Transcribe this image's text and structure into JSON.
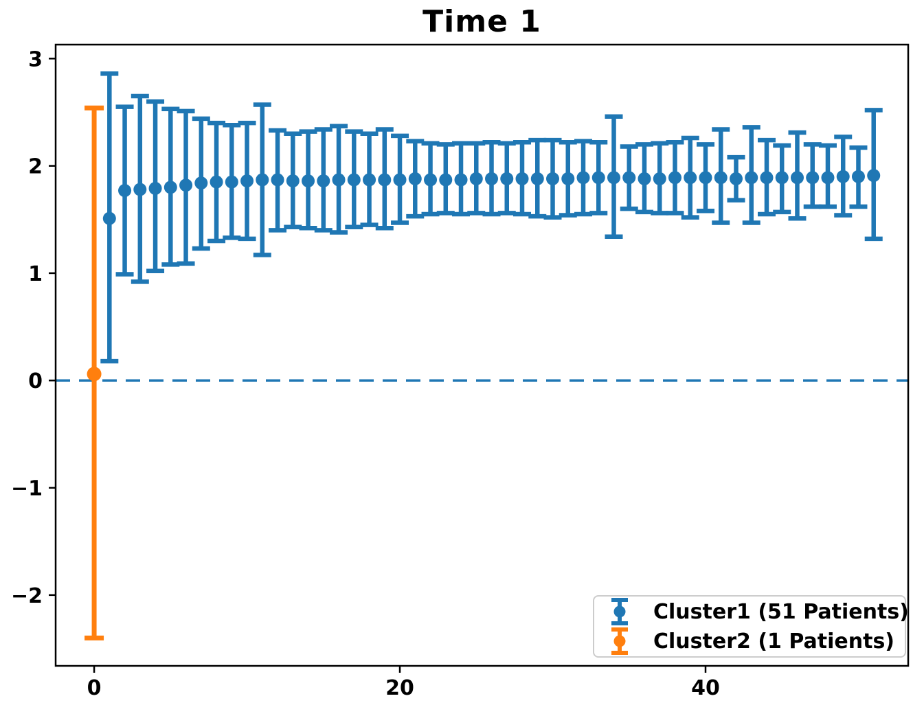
{
  "figure": {
    "background": "#ffffff"
  },
  "chart_data": {
    "type": "scatter",
    "subtype": "errorbar",
    "title": "Time 1",
    "xlabel": "",
    "ylabel": "",
    "xlim": [
      -2.52,
      53.26
    ],
    "ylim": [
      -2.66,
      3.13
    ],
    "grid": false,
    "x_ticks": [
      {
        "value": 0,
        "label": "0"
      },
      {
        "value": 20,
        "label": "20"
      },
      {
        "value": 40,
        "label": "40"
      }
    ],
    "y_ticks": [
      {
        "value": -2,
        "label": "−2"
      },
      {
        "value": -1,
        "label": "−1"
      },
      {
        "value": 0,
        "label": "0"
      },
      {
        "value": 1,
        "label": "1"
      },
      {
        "value": 2,
        "label": "2"
      },
      {
        "value": 3,
        "label": "3"
      }
    ],
    "zero_line": {
      "y": 0,
      "color": "#1f77b4",
      "style": "dashed"
    },
    "legend": {
      "position": "lower right"
    },
    "series": [
      {
        "name": "Cluster1 (51 Patients)",
        "color": "#1f77b4",
        "x": [
          1,
          2,
          3,
          4,
          5,
          6,
          7,
          8,
          9,
          10,
          11,
          12,
          13,
          14,
          15,
          16,
          17,
          18,
          19,
          20,
          21,
          22,
          23,
          24,
          25,
          26,
          27,
          28,
          29,
          30,
          31,
          32,
          33,
          34,
          35,
          36,
          37,
          38,
          39,
          40,
          41,
          42,
          43,
          44,
          45,
          46,
          47,
          48,
          49,
          50,
          51
        ],
        "y": [
          1.51,
          1.77,
          1.78,
          1.79,
          1.8,
          1.82,
          1.84,
          1.85,
          1.85,
          1.86,
          1.87,
          1.87,
          1.86,
          1.86,
          1.86,
          1.87,
          1.87,
          1.87,
          1.87,
          1.87,
          1.88,
          1.87,
          1.87,
          1.87,
          1.88,
          1.88,
          1.88,
          1.88,
          1.88,
          1.88,
          1.88,
          1.89,
          1.89,
          1.89,
          1.89,
          1.88,
          1.88,
          1.89,
          1.89,
          1.89,
          1.89,
          1.88,
          1.89,
          1.89,
          1.89,
          1.89,
          1.89,
          1.89,
          1.9,
          1.9,
          1.91
        ],
        "y_lo": [
          0.18,
          0.99,
          0.92,
          1.02,
          1.08,
          1.09,
          1.23,
          1.3,
          1.33,
          1.32,
          1.17,
          1.4,
          1.43,
          1.42,
          1.4,
          1.38,
          1.43,
          1.45,
          1.42,
          1.47,
          1.53,
          1.55,
          1.56,
          1.55,
          1.56,
          1.55,
          1.56,
          1.55,
          1.53,
          1.52,
          1.54,
          1.55,
          1.56,
          1.34,
          1.6,
          1.57,
          1.56,
          1.56,
          1.52,
          1.58,
          1.47,
          1.68,
          1.47,
          1.55,
          1.57,
          1.51,
          1.62,
          1.62,
          1.54,
          1.62,
          1.32
        ],
        "y_hi": [
          2.86,
          2.55,
          2.65,
          2.6,
          2.53,
          2.51,
          2.44,
          2.4,
          2.38,
          2.4,
          2.57,
          2.33,
          2.3,
          2.32,
          2.34,
          2.37,
          2.32,
          2.3,
          2.34,
          2.28,
          2.23,
          2.21,
          2.2,
          2.21,
          2.21,
          2.22,
          2.21,
          2.22,
          2.24,
          2.24,
          2.22,
          2.23,
          2.22,
          2.46,
          2.18,
          2.2,
          2.21,
          2.22,
          2.26,
          2.2,
          2.34,
          2.08,
          2.36,
          2.24,
          2.19,
          2.31,
          2.2,
          2.19,
          2.27,
          2.17,
          2.52
        ]
      },
      {
        "name": "Cluster2 (1 Patients)",
        "color": "#ff7f0e",
        "x": [
          0
        ],
        "y": [
          0.06
        ],
        "y_lo": [
          -2.4
        ],
        "y_hi": [
          2.54
        ]
      }
    ]
  }
}
